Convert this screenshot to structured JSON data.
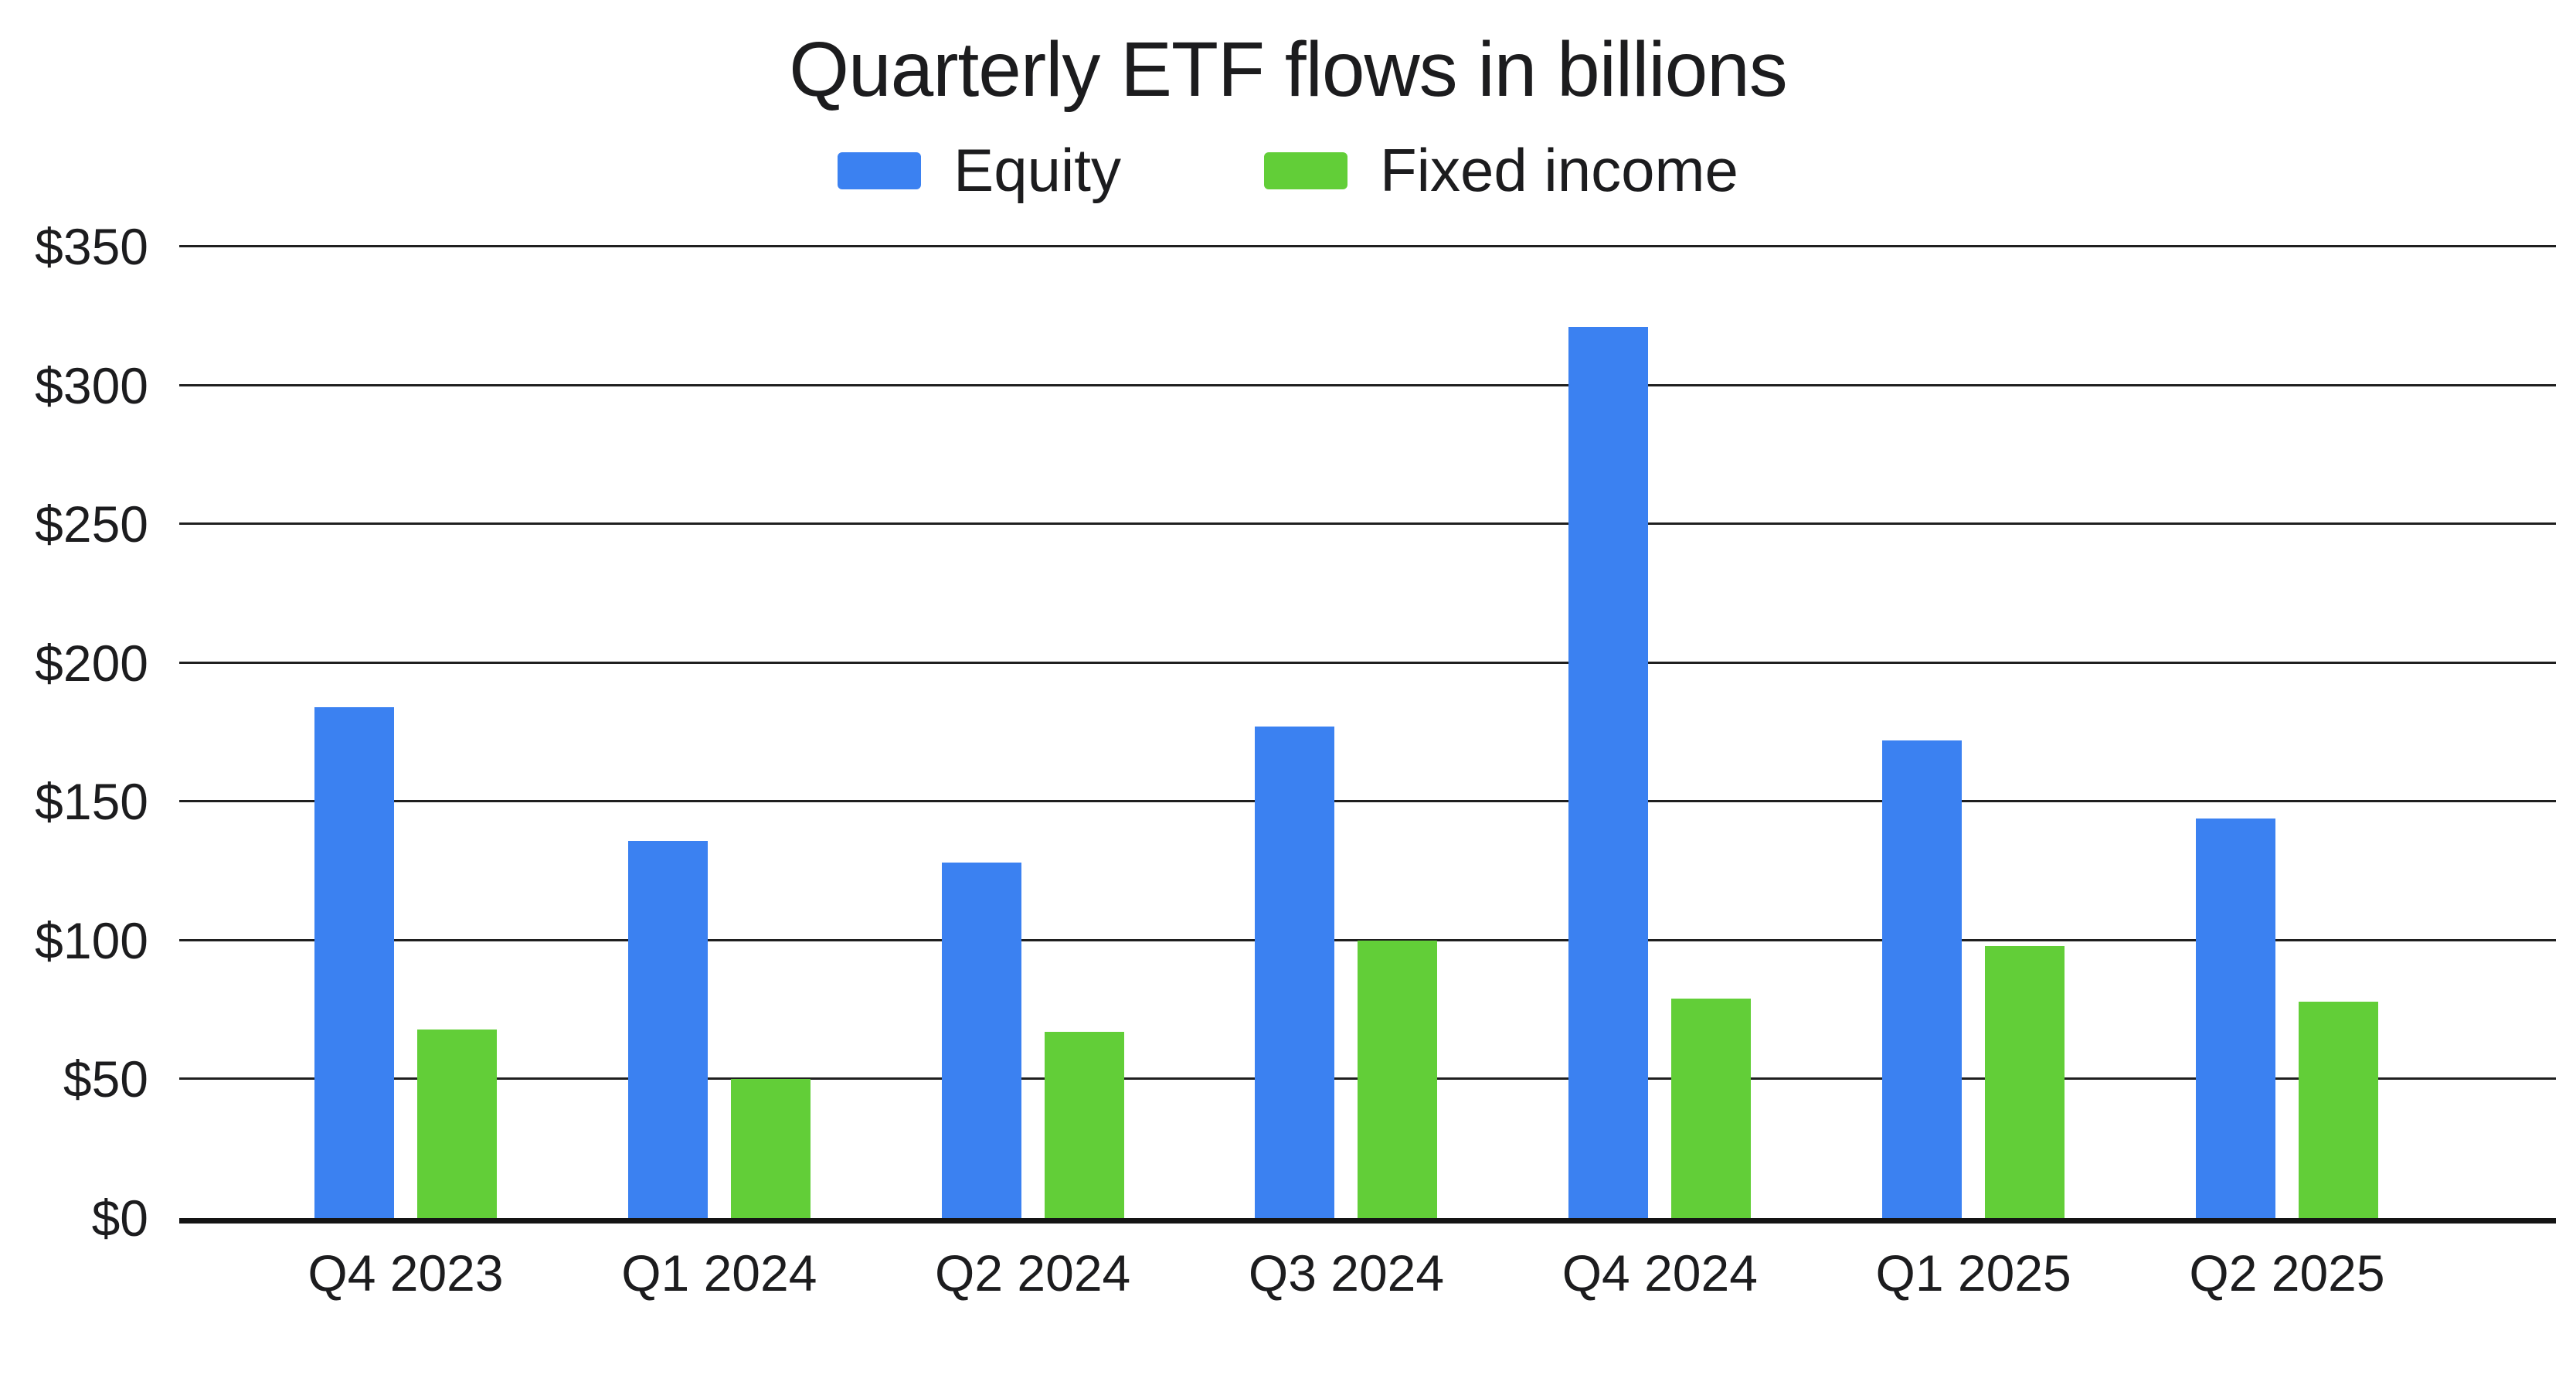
{
  "title": "Quarterly ETF flows in billions",
  "colors": {
    "equity": "#3B81F1",
    "fixed_income": "#62CE38",
    "gridline": "#1f1f1f",
    "axis": "#141414",
    "text": "#1c1c1e",
    "background": "#ffffff"
  },
  "legend": {
    "position": "top",
    "items": [
      {
        "label": "Equity",
        "color": "#3B81F1"
      },
      {
        "label": "Fixed income",
        "color": "#62CE38"
      }
    ]
  },
  "chart_data": {
    "type": "bar",
    "title": "Quarterly ETF flows in billions",
    "categories": [
      "Q4 2023",
      "Q1 2024",
      "Q2 2024",
      "Q3 2024",
      "Q4 2024",
      "Q1 2025",
      "Q2 2025"
    ],
    "series": [
      {
        "name": "Equity",
        "color": "#3B81F1",
        "values": [
          184,
          136,
          128,
          177,
          321,
          172,
          144
        ]
      },
      {
        "name": "Fixed income",
        "color": "#62CE38",
        "values": [
          68,
          50,
          67,
          100,
          79,
          98,
          78
        ]
      }
    ],
    "xlabel": "",
    "ylabel": "",
    "ylim": [
      0,
      350
    ],
    "ytick_step": 50,
    "ytick_prefix": "$",
    "ytick_labels": [
      "$0",
      "$50",
      "$100",
      "$150",
      "$200",
      "$250",
      "$300",
      "$350"
    ],
    "grid": true,
    "legend_position": "top",
    "units": "billions USD"
  }
}
